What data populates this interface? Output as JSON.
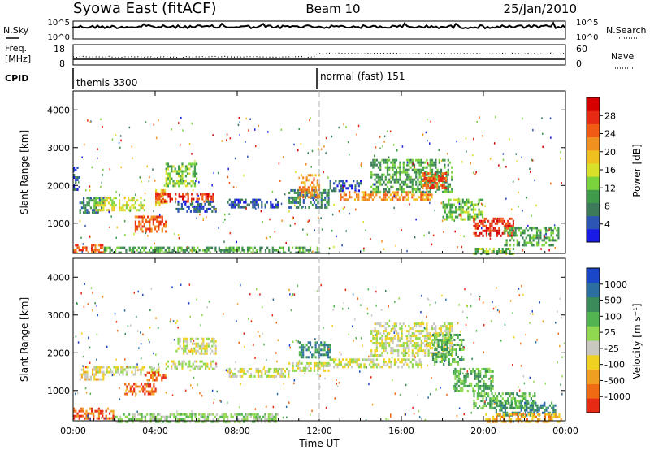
{
  "header": {
    "title": "Syowa East (fitACF)",
    "beam": "Beam 10",
    "date": "25/Jan/2010"
  },
  "nsky_panel": {
    "left_label": "N.Sky",
    "right_label": "N.Search",
    "left_ticks": [
      "10^5",
      "10^0"
    ],
    "right_ticks": [
      "10^5",
      "10^0"
    ]
  },
  "freq_panel": {
    "left_label_1": "Freq.",
    "left_label_2": "[MHz]",
    "right_label": "Nave",
    "left_ticks": [
      "18",
      "8"
    ],
    "right_ticks": [
      "60",
      "0"
    ]
  },
  "cpid_panel": {
    "label": "CPID",
    "modes": [
      "themis 3300",
      "normal (fast) 151"
    ]
  },
  "colors": {
    "grey_bg": "#c8c8c0",
    "dashed_line": "#b0b0b0"
  },
  "chart_data": [
    {
      "type": "heatmap",
      "name": "power-panel",
      "xlabel": "",
      "ylabel": "Slant Range [km]",
      "xlim": [
        0,
        24
      ],
      "ylim": [
        200,
        4500
      ],
      "yticks": [
        "1000",
        "2000",
        "3000",
        "4000"
      ],
      "colorbar": {
        "label": "Power [dB]",
        "ticks": [
          "4",
          "8",
          "12",
          "16",
          "20",
          "24",
          "28"
        ],
        "colors": [
          "#1a1ae6",
          "#2d55b4",
          "#3c7a5a",
          "#3f9a4a",
          "#7ad23c",
          "#d8e02a",
          "#f0c020",
          "#f09020",
          "#f05a14",
          "#e62a14",
          "#d60000"
        ]
      },
      "regions": [
        {
          "t": [
            0.0,
            0.3
          ],
          "r": [
            1900,
            2500
          ],
          "level": 1
        },
        {
          "t": [
            0.3,
            1.5
          ],
          "r": [
            1300,
            1700
          ],
          "level": 2
        },
        {
          "t": [
            1.0,
            3.5
          ],
          "r": [
            1350,
            1700
          ],
          "level": 5
        },
        {
          "t": [
            3.0,
            4.5
          ],
          "r": [
            800,
            1200
          ],
          "level": 8
        },
        {
          "t": [
            4.0,
            4.6
          ],
          "r": [
            1500,
            1900
          ],
          "level": 6
        },
        {
          "t": [
            4.0,
            6.8
          ],
          "r": [
            1550,
            1800
          ],
          "level": 9
        },
        {
          "t": [
            4.5,
            6.0
          ],
          "r": [
            2000,
            2600
          ],
          "level": 4
        },
        {
          "t": [
            5.0,
            7.0
          ],
          "r": [
            1300,
            1600
          ],
          "level": 1
        },
        {
          "t": [
            7.5,
            10.0
          ],
          "r": [
            1400,
            1650
          ],
          "level": 1
        },
        {
          "t": [
            10.5,
            12.5
          ],
          "r": [
            1400,
            1900
          ],
          "level": 2
        },
        {
          "t": [
            11.0,
            12.0
          ],
          "r": [
            1700,
            2300
          ],
          "level": 7
        },
        {
          "t": [
            12.5,
            14.0
          ],
          "r": [
            1850,
            2150
          ],
          "level": 1
        },
        {
          "t": [
            13.0,
            17.5
          ],
          "r": [
            1600,
            1850
          ],
          "level": 7
        },
        {
          "t": [
            14.5,
            18.5
          ],
          "r": [
            1850,
            2700
          ],
          "level": 3
        },
        {
          "t": [
            17.0,
            18.2
          ],
          "r": [
            1950,
            2350
          ],
          "level": 8
        },
        {
          "t": [
            18.0,
            20.0
          ],
          "r": [
            1100,
            1650
          ],
          "level": 4
        },
        {
          "t": [
            19.5,
            21.5
          ],
          "r": [
            650,
            1150
          ],
          "level": 9
        },
        {
          "t": [
            21.0,
            23.7
          ],
          "r": [
            400,
            900
          ],
          "level": 3
        },
        {
          "t": [
            0.0,
            1.5
          ],
          "r": [
            200,
            450
          ],
          "level": 8
        },
        {
          "t": [
            1.5,
            12.0
          ],
          "r": [
            200,
            380
          ],
          "level": 3
        },
        {
          "t": [
            19.5,
            21.5
          ],
          "r": [
            200,
            350
          ],
          "level": 4
        }
      ]
    },
    {
      "type": "heatmap",
      "name": "velocity-panel",
      "xlabel": "Time UT",
      "ylabel": "Slant Range [km]",
      "xlim": [
        0,
        24
      ],
      "ylim": [
        200,
        4500
      ],
      "xticks": [
        "00:00",
        "04:00",
        "08:00",
        "12:00",
        "16:00",
        "20:00",
        "00:00"
      ],
      "yticks": [
        "1000",
        "2000",
        "3000",
        "4000"
      ],
      "colorbar": {
        "label": "Velocity [m s⁻¹]",
        "ticks": [
          "1000",
          "500",
          "100",
          "25",
          "-25",
          "-100",
          "-500",
          "-1000"
        ],
        "colors": [
          "#1a46c8",
          "#2d6ea0",
          "#3a8a5a",
          "#52b450",
          "#90d850",
          "#c8c8c0",
          "#f0d020",
          "#f0a020",
          "#f06a14",
          "#e62a14"
        ]
      },
      "regions": [
        {
          "t": [
            0.3,
            1.5
          ],
          "r": [
            1300,
            1650
          ],
          "level": 6
        },
        {
          "t": [
            1.0,
            4.3
          ],
          "r": [
            1400,
            1650
          ],
          "level": 5
        },
        {
          "t": [
            2.5,
            4.0
          ],
          "r": [
            900,
            1200
          ],
          "level": 8
        },
        {
          "t": [
            3.5,
            4.5
          ],
          "r": [
            1250,
            1500
          ],
          "level": 8
        },
        {
          "t": [
            4.5,
            7.0
          ],
          "r": [
            1600,
            1800
          ],
          "level": 5
        },
        {
          "t": [
            5.0,
            7.0
          ],
          "r": [
            2000,
            2400
          ],
          "level": 5
        },
        {
          "t": [
            7.5,
            10.5
          ],
          "r": [
            1400,
            1600
          ],
          "level": 5
        },
        {
          "t": [
            10.5,
            12.5
          ],
          "r": [
            1500,
            1750
          ],
          "level": 5
        },
        {
          "t": [
            11.0,
            12.5
          ],
          "r": [
            1900,
            2300
          ],
          "level": 2
        },
        {
          "t": [
            12.5,
            17.0
          ],
          "r": [
            1650,
            1850
          ],
          "level": 5
        },
        {
          "t": [
            14.5,
            18.5
          ],
          "r": [
            1900,
            2800
          ],
          "level": 5
        },
        {
          "t": [
            17.5,
            19.0
          ],
          "r": [
            1700,
            2500
          ],
          "level": 3
        },
        {
          "t": [
            18.5,
            20.5
          ],
          "r": [
            1000,
            1600
          ],
          "level": 3
        },
        {
          "t": [
            19.5,
            22.5
          ],
          "r": [
            500,
            950
          ],
          "level": 3
        },
        {
          "t": [
            20.5,
            23.5
          ],
          "r": [
            350,
            700
          ],
          "level": 2
        },
        {
          "t": [
            0.0,
            2.0
          ],
          "r": [
            250,
            550
          ],
          "level": 8
        },
        {
          "t": [
            2.0,
            10.0
          ],
          "r": [
            200,
            400
          ],
          "level": 4
        },
        {
          "t": [
            20.0,
            23.8
          ],
          "r": [
            200,
            400
          ],
          "level": 7
        }
      ]
    }
  ]
}
